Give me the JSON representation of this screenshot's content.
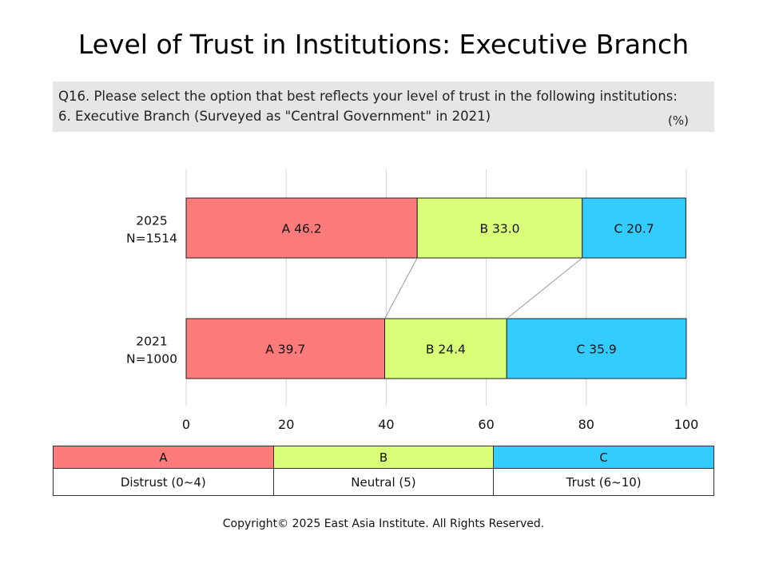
{
  "title": "Level of Trust in Institutions: Executive Branch",
  "question": {
    "line1": "Q16. Please select the option that best reflects your level of trust in the following institutions:",
    "line2": "6. Executive Branch (Surveyed as \"Central Government\" in 2021)",
    "unit": "(%)"
  },
  "chart_data": {
    "type": "bar",
    "orientation": "horizontal",
    "stacked": true,
    "categories": [
      "2025\nN=1514",
      "2021\nN=1000"
    ],
    "category_lines": [
      [
        "2025",
        "N=1514"
      ],
      [
        "2021",
        "N=1000"
      ]
    ],
    "series": [
      {
        "name": "A",
        "values": [
          46.2,
          39.7
        ],
        "color": "#ff7b7b"
      },
      {
        "name": "B",
        "values": [
          33.0,
          24.4
        ],
        "color": "#d9ff78"
      },
      {
        "name": "C",
        "values": [
          20.7,
          35.9
        ],
        "color": "#33ccff"
      }
    ],
    "xlim": [
      0,
      100
    ],
    "xticks": [
      "0",
      "20",
      "40",
      "60",
      "80",
      "100"
    ],
    "grid": true,
    "connector_lines": true
  },
  "legend": {
    "codes": [
      "A",
      "B",
      "C"
    ],
    "descriptions": [
      "Distrust (0~4)",
      "Neutral (5)",
      "Trust (6~10)"
    ],
    "colors": [
      "#ff7b7b",
      "#d9ff78",
      "#33ccff"
    ]
  },
  "copyright": "Copyright© 2025 East Asia Institute. All Rights Reserved."
}
